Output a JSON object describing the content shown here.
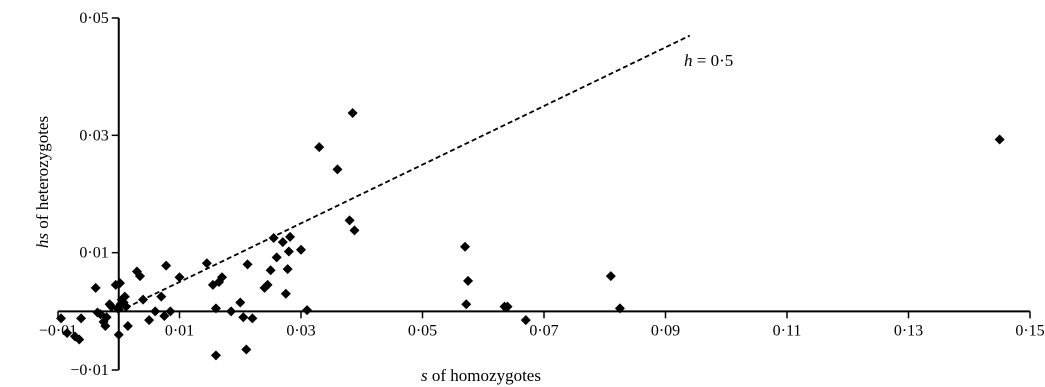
{
  "chart_data": {
    "type": "scatter",
    "title": "",
    "xlabel": {
      "italic": "s",
      "rest": " of homozygotes"
    },
    "ylabel": {
      "italic": "hs",
      "rest": " of heterozygotes"
    },
    "xlim": [
      -0.01,
      0.15
    ],
    "ylim": [
      -0.01,
      0.05
    ],
    "x_ticks": [
      -0.01,
      0.01,
      0.03,
      0.05,
      0.07,
      0.09,
      0.11,
      0.13,
      0.15
    ],
    "x_tick_labels": [
      "−0·01",
      "0·01",
      "0·03",
      "0·05",
      "0·07",
      "0·09",
      "0·11",
      "0·13",
      "0·15"
    ],
    "y_ticks": [
      -0.01,
      0.01,
      0.03,
      0.05
    ],
    "y_tick_labels": [
      "−0·01",
      "0·01",
      "0·03",
      "0·05"
    ],
    "grid": false,
    "marker": "diamond",
    "marker_color": "#000000",
    "reference_line": {
      "slope": 0.5,
      "x_range": [
        0.0,
        0.094
      ],
      "style": "dashed",
      "label_italic": "h",
      "label_rest": " = 0·5"
    },
    "points": [
      [
        -0.0095,
        -0.0012
      ],
      [
        -0.0085,
        -0.0037
      ],
      [
        -0.0072,
        -0.0043
      ],
      [
        -0.0065,
        -0.0048
      ],
      [
        -0.0062,
        -0.0012
      ],
      [
        -0.0038,
        0.004
      ],
      [
        -0.0035,
        -0.0002
      ],
      [
        -0.003,
        -0.0005
      ],
      [
        -0.0025,
        -0.0018
      ],
      [
        -0.0022,
        -0.0025
      ],
      [
        -0.002,
        -0.001
      ],
      [
        -0.0015,
        0.0012
      ],
      [
        -0.0012,
        0.0008
      ],
      [
        -0.0005,
        0.0045
      ],
      [
        -0.0002,
        0.0005
      ],
      [
        0.0,
        -0.004
      ],
      [
        0.0002,
        0.0048
      ],
      [
        0.0003,
        0.0012
      ],
      [
        0.0005,
        0.002
      ],
      [
        0.0008,
        0.0015
      ],
      [
        0.001,
        0.0025
      ],
      [
        0.0012,
        0.0008
      ],
      [
        0.0015,
        -0.0025
      ],
      [
        0.003,
        0.0068
      ],
      [
        0.0035,
        0.006
      ],
      [
        0.004,
        0.002
      ],
      [
        0.005,
        -0.0015
      ],
      [
        0.006,
        0.0
      ],
      [
        0.007,
        0.0025
      ],
      [
        0.0075,
        -0.0008
      ],
      [
        0.0078,
        0.0078
      ],
      [
        0.0085,
        0.0
      ],
      [
        0.01,
        0.0058
      ],
      [
        0.0145,
        0.0082
      ],
      [
        0.0155,
        0.0045
      ],
      [
        0.016,
        0.0005
      ],
      [
        0.0165,
        0.005
      ],
      [
        0.017,
        0.0058
      ],
      [
        0.016,
        -0.0075
      ],
      [
        0.0185,
        0.0
      ],
      [
        0.02,
        0.0015
      ],
      [
        0.0205,
        -0.001
      ],
      [
        0.021,
        -0.0065
      ],
      [
        0.0212,
        0.008
      ],
      [
        0.022,
        -0.0012
      ],
      [
        0.024,
        0.004
      ],
      [
        0.0245,
        0.0045
      ],
      [
        0.025,
        0.007
      ],
      [
        0.0255,
        0.0125
      ],
      [
        0.026,
        0.0092
      ],
      [
        0.027,
        0.0118
      ],
      [
        0.0275,
        0.003
      ],
      [
        0.0278,
        0.0072
      ],
      [
        0.028,
        0.0102
      ],
      [
        0.0282,
        0.0127
      ],
      [
        0.03,
        0.0105
      ],
      [
        0.031,
        0.0002
      ],
      [
        0.033,
        0.028
      ],
      [
        0.036,
        0.0242
      ],
      [
        0.038,
        0.0155
      ],
      [
        0.0385,
        0.0338
      ],
      [
        0.0388,
        0.0138
      ],
      [
        0.057,
        0.011
      ],
      [
        0.0572,
        0.0012
      ],
      [
        0.0575,
        0.0052
      ],
      [
        0.0635,
        0.0008
      ],
      [
        0.064,
        0.0008
      ],
      [
        0.067,
        -0.0015
      ],
      [
        0.081,
        0.006
      ],
      [
        0.0825,
        0.0005
      ],
      [
        0.145,
        0.0293
      ]
    ]
  }
}
